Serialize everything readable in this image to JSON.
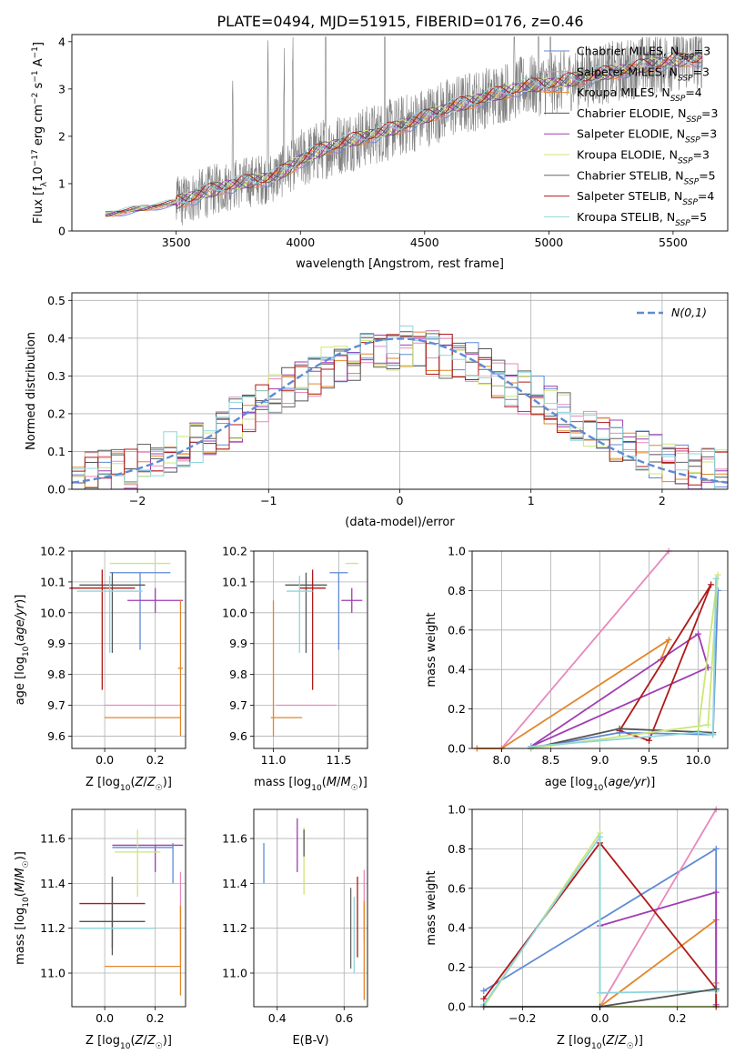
{
  "figure_title": "PLATE=0494, MJD=51915, FIBERID=0176, z=0.46",
  "colors": {
    "Chabrier MILES": "#5f8ad6",
    "Salpeter MILES": "#e889bd",
    "Kroupa MILES": "#e2862c",
    "Chabrier ELODIE": "#555555",
    "Salpeter ELODIE": "#a03cb4",
    "Kroupa ELODIE": "#cde67a",
    "Chabrier STELIB": "#666666",
    "Salpeter STELIB": "#b01919",
    "Kroupa STELIB": "#8fd6dc"
  },
  "chart_data": [
    {
      "id": "spectrum",
      "type": "line",
      "title": "PLATE=0494, MJD=51915, FIBERID=0176, z=0.46",
      "xlabel": "wavelength [Angstrom, rest frame]",
      "ylabel": "Flux [f_λ 10^-17 erg cm^-2 s^-1 A^-1]",
      "xlim": [
        3080,
        5720
      ],
      "ylim": [
        0,
        4.15
      ],
      "xticks": [
        3500,
        4000,
        4500,
        5000,
        5500
      ],
      "yticks": [
        0,
        1,
        2,
        3,
        4
      ],
      "grid": false,
      "legend_position": "top-right",
      "observed_spectrum": {
        "color": "#808080",
        "x_range": [
          3215,
          5620
        ]
      },
      "series": [
        {
          "name": "Chabrier MILES, N_SSP=3",
          "legend_label": "Chabrier MILES, N",
          "nssp": "=3"
        },
        {
          "name": "Salpeter MILES, N_SSP=3",
          "legend_label": "Salpeter MILES, N",
          "nssp": "=3"
        },
        {
          "name": "Kroupa MILES, N_SSP=4",
          "legend_label": "Kroupa MILES, N",
          "nssp": "=4"
        },
        {
          "name": "Chabrier ELODIE, N_SSP=3",
          "legend_label": "Chabrier ELODIE, N",
          "nssp": "=3"
        },
        {
          "name": "Salpeter ELODIE, N_SSP=3",
          "legend_label": "Salpeter ELODIE, N",
          "nssp": "=3"
        },
        {
          "name": "Kroupa ELODIE, N_SSP=3",
          "legend_label": "Kroupa ELODIE, N",
          "nssp": "=3"
        },
        {
          "name": "Chabrier STELIB, N_SSP=5",
          "legend_label": "Chabrier STELIB, N",
          "nssp": "=5"
        },
        {
          "name": "Salpeter STELIB, N_SSP=4",
          "legend_label": "Salpeter STELIB, N",
          "nssp": "=4"
        },
        {
          "name": "Kroupa STELIB, N_SSP=5",
          "legend_label": "Kroupa STELIB, N",
          "nssp": "=5"
        }
      ],
      "continuum": {
        "x": [
          3215,
          3300,
          3450,
          3500,
          3600,
          3700,
          3800,
          3900,
          4000,
          4100,
          4200,
          4300,
          4400,
          4500,
          4600,
          4700,
          4800,
          4900,
          5000,
          5100,
          5200,
          5300,
          5400,
          5500,
          5620
        ],
        "y": [
          0.35,
          0.42,
          0.55,
          0.6,
          0.78,
          0.95,
          1.05,
          1.15,
          1.5,
          1.75,
          1.9,
          2.05,
          2.2,
          2.4,
          2.6,
          2.75,
          2.9,
          3.05,
          3.1,
          3.2,
          3.3,
          3.4,
          3.5,
          3.6,
          3.65
        ]
      }
    },
    {
      "id": "residuals",
      "type": "histogram",
      "xlabel": "(data-model)/error",
      "ylabel": "Normed distribution",
      "xlim": [
        -2.5,
        2.5
      ],
      "ylim": [
        0,
        0.52
      ],
      "xticks": [
        -2,
        -1,
        0,
        1,
        2
      ],
      "yticks": [
        0.0,
        0.1,
        0.2,
        0.3,
        0.4,
        0.5
      ],
      "grid": true,
      "legend_position": "top-right",
      "legend_label": "N(0,1)",
      "bin_width": 0.1,
      "reference": {
        "name": "N(0,1)",
        "mean": 0,
        "sigma": 1,
        "style": "dashed",
        "color": "#5f8ad6"
      },
      "series_envelope": {
        "x": [
          -2.5,
          -2.0,
          -1.5,
          -1.0,
          -0.5,
          0.0,
          0.5,
          1.0,
          1.5,
          2.0,
          2.5
        ],
        "y": [
          0.03,
          0.06,
          0.13,
          0.24,
          0.33,
          0.38,
          0.34,
          0.25,
          0.15,
          0.08,
          0.04
        ]
      }
    },
    {
      "id": "age-vs-Z",
      "type": "errorbar",
      "xlabel": "Z [log10(Z/Z☉)]",
      "ylabel": "age [log10(age/yr)]",
      "xlim": [
        -0.13,
        0.32
      ],
      "ylim": [
        9.56,
        10.2
      ],
      "xticks": [
        0.0,
        0.2
      ],
      "yticks": [
        9.6,
        9.7,
        9.8,
        9.9,
        10.0,
        10.1,
        10.2
      ],
      "grid": true,
      "points": [
        {
          "series": "Chabrier MILES",
          "x": 0.14,
          "xerr": [
            0.12,
            0.12
          ],
          "y": 10.13,
          "yerr": [
            0.25,
            0.0
          ]
        },
        {
          "series": "Kroupa ELODIE",
          "x": 0.14,
          "xerr": [
            0.12,
            0.12
          ],
          "y": 10.16,
          "yerr": [
            0.0,
            0.0
          ]
        },
        {
          "series": "Chabrier ELODIE",
          "x": 0.03,
          "xerr": [
            0.13,
            0.13
          ],
          "y": 10.09,
          "yerr": [
            0.22,
            0.04
          ]
        },
        {
          "series": "Salpeter STELIB",
          "x": -0.01,
          "xerr": [
            0.13,
            0.13
          ],
          "y": 10.08,
          "yerr": [
            0.33,
            0.06
          ]
        },
        {
          "series": "Kroupa STELIB",
          "x": 0.02,
          "xerr": [
            0.13,
            0.13
          ],
          "y": 10.07,
          "yerr": [
            0.2,
            0.05
          ]
        },
        {
          "series": "Salpeter ELODIE",
          "x": 0.2,
          "xerr": [
            0.11,
            0.11
          ],
          "y": 10.04,
          "yerr": [
            0.04,
            0.04
          ]
        },
        {
          "series": "Kroupa MILES",
          "x": 0.3,
          "xerr": [
            0.01,
            0.01
          ],
          "y": 9.82,
          "yerr": [
            0.22,
            0.22
          ]
        },
        {
          "series": "Salpeter MILES",
          "x": 0.15,
          "xerr": [
            0.15,
            0.15
          ],
          "y": 9.7,
          "yerr": [
            0.0,
            0.0
          ]
        },
        {
          "series": "Kroupa MILES",
          "x": 0.15,
          "xerr": [
            0.15,
            0.15
          ],
          "y": 9.66,
          "yerr": [
            0.0,
            0.0
          ]
        }
      ]
    },
    {
      "id": "age-vs-mass",
      "type": "errorbar",
      "xlabel": "mass [log10(M/M☉)]",
      "ylabel": "",
      "xlim": [
        10.85,
        11.72
      ],
      "ylim": [
        9.56,
        10.2
      ],
      "xticks": [
        11.0,
        11.5
      ],
      "yticks": [
        9.6,
        9.7,
        9.8,
        9.9,
        10.0,
        10.1,
        10.2
      ],
      "grid": true,
      "points": [
        {
          "series": "Chabrier MILES",
          "x": 11.5,
          "xerr": [
            0.07,
            0.07
          ],
          "y": 10.13,
          "yerr": [
            0.25,
            0.0
          ]
        },
        {
          "series": "Kroupa ELODIE",
          "x": 11.6,
          "xerr": [
            0.05,
            0.05
          ],
          "y": 10.16,
          "yerr": [
            0.0,
            0.0
          ]
        },
        {
          "series": "Chabrier ELODIE",
          "x": 11.25,
          "xerr": [
            0.16,
            0.16
          ],
          "y": 10.09,
          "yerr": [
            0.22,
            0.04
          ]
        },
        {
          "series": "Salpeter STELIB",
          "x": 11.3,
          "xerr": [
            0.1,
            0.1
          ],
          "y": 10.08,
          "yerr": [
            0.33,
            0.06
          ]
        },
        {
          "series": "Kroupa STELIB",
          "x": 11.2,
          "xerr": [
            0.1,
            0.1
          ],
          "y": 10.07,
          "yerr": [
            0.2,
            0.05
          ]
        },
        {
          "series": "Salpeter ELODIE",
          "x": 11.6,
          "xerr": [
            0.08,
            0.08
          ],
          "y": 10.04,
          "yerr": [
            0.04,
            0.04
          ]
        },
        {
          "series": "Kroupa MILES",
          "x": 11.0,
          "xerr": [
            0.0,
            0.0
          ],
          "y": 9.82,
          "yerr": [
            0.22,
            0.22
          ]
        },
        {
          "series": "Salpeter MILES",
          "x": 11.25,
          "xerr": [
            0.23,
            0.23
          ],
          "y": 9.7,
          "yerr": [
            0.0,
            0.0
          ]
        },
        {
          "series": "Kroupa MILES",
          "x": 11.1,
          "xerr": [
            0.12,
            0.12
          ],
          "y": 9.66,
          "yerr": [
            0.0,
            0.0
          ]
        }
      ]
    },
    {
      "id": "weight-vs-age",
      "type": "line",
      "xlabel": "age [log10(age/yr)]",
      "ylabel": "mass weight",
      "xlim": [
        7.7,
        10.3
      ],
      "ylim": [
        0.0,
        1.0
      ],
      "xticks": [
        8.0,
        8.5,
        9.0,
        9.5,
        10.0
      ],
      "yticks": [
        0.0,
        0.2,
        0.4,
        0.6,
        0.8,
        1.0
      ],
      "grid": true,
      "series": [
        {
          "name": "Salpeter MILES",
          "x": [
            7.75,
            8.0,
            9.7
          ],
          "y": [
            0.0,
            0.0,
            1.0
          ]
        },
        {
          "name": "Kroupa MILES",
          "x": [
            7.75,
            8.0,
            9.7,
            9.62
          ],
          "y": [
            0.0,
            0.0,
            0.55,
            0.45
          ]
        },
        {
          "name": "Salpeter ELODIE",
          "x": [
            8.3,
            10.0,
            10.1,
            8.3
          ],
          "y": [
            0.01,
            0.58,
            0.41,
            0.01
          ]
        },
        {
          "name": "Salpeter STELIB",
          "x": [
            9.2,
            9.5,
            10.13,
            9.2
          ],
          "y": [
            0.09,
            0.04,
            0.83,
            0.09
          ]
        },
        {
          "name": "Chabrier MILES",
          "x": [
            8.3,
            9.2,
            10.15,
            10.2
          ],
          "y": [
            0.0,
            0.08,
            0.07,
            0.8
          ]
        },
        {
          "name": "Chabrier ELODIE",
          "x": [
            8.3,
            9.2,
            10.15
          ],
          "y": [
            0.0,
            0.1,
            0.08
          ]
        },
        {
          "name": "Kroupa ELODIE",
          "x": [
            8.3,
            10.1,
            10.2,
            10.0
          ],
          "y": [
            0.0,
            0.12,
            0.88,
            0.09
          ]
        },
        {
          "name": "Kroupa STELIB",
          "x": [
            8.3,
            10.0,
            10.15,
            10.18
          ],
          "y": [
            0.01,
            0.08,
            0.07,
            0.86
          ]
        }
      ]
    },
    {
      "id": "mass-vs-Z",
      "type": "errorbar",
      "xlabel": "Z [log10(Z/Z☉)]",
      "ylabel": "mass [log10(M/M☉)]",
      "xlim": [
        -0.13,
        0.32
      ],
      "ylim": [
        10.85,
        11.73
      ],
      "xticks": [
        0.0,
        0.2
      ],
      "yticks": [
        11.0,
        11.2,
        11.4,
        11.6
      ],
      "grid": true,
      "points": [
        {
          "series": "Salpeter ELODIE",
          "x": 0.2,
          "xerr": [
            0.17,
            0.11
          ],
          "y": 11.57,
          "yerr": [
            0.12,
            0.0
          ]
        },
        {
          "series": "Chabrier MILES",
          "x": 0.15,
          "xerr": [
            0.12,
            0.12
          ],
          "y": 11.56,
          "yerr": [
            0.0,
            0.0
          ]
        },
        {
          "series": "Kroupa ELODIE",
          "x": 0.13,
          "xerr": [
            0.09,
            0.09
          ],
          "y": 11.54,
          "yerr": [
            0.2,
            0.1
          ]
        },
        {
          "series": "Chabrier MILES",
          "x": 0.27,
          "xerr": [
            0.0,
            0.0
          ],
          "y": 11.5,
          "yerr": [
            0.1,
            0.08
          ]
        },
        {
          "series": "Salpeter STELIB",
          "x": 0.03,
          "xerr": [
            0.13,
            0.13
          ],
          "y": 11.31,
          "yerr": [
            0.2,
            0.12
          ]
        },
        {
          "series": "Chabrier ELODIE",
          "x": 0.03,
          "xerr": [
            0.13,
            0.13
          ],
          "y": 11.23,
          "yerr": [
            0.15,
            0.2
          ]
        },
        {
          "series": "Kroupa STELIB",
          "x": 0.05,
          "xerr": [
            0.15,
            0.15
          ],
          "y": 11.2,
          "yerr": [
            0.0,
            0.0
          ]
        },
        {
          "series": "Salpeter MILES",
          "x": 0.3,
          "xerr": [
            0.0,
            0.0
          ],
          "y": 11.25,
          "yerr": [
            0.2,
            0.2
          ]
        },
        {
          "series": "Kroupa MILES",
          "x": 0.15,
          "xerr": [
            0.15,
            0.15
          ],
          "y": 11.03,
          "yerr": [
            0.0,
            0.0
          ]
        },
        {
          "series": "Kroupa MILES",
          "x": 0.3,
          "xerr": [
            0.0,
            0.0
          ],
          "y": 11.1,
          "yerr": [
            0.2,
            0.2
          ]
        }
      ]
    },
    {
      "id": "mass-vs-ebv",
      "type": "errorbar",
      "xlabel": "E(B-V)",
      "ylabel": "",
      "xlim": [
        0.33,
        0.67
      ],
      "ylim": [
        10.85,
        11.73
      ],
      "xticks": [
        0.4,
        0.6
      ],
      "yticks": [
        11.0,
        11.2,
        11.4,
        11.6
      ],
      "grid": true,
      "points": [
        {
          "series": "Chabrier MILES",
          "x": 0.36,
          "xerr": [
            0.0,
            0.0
          ],
          "y": 11.5,
          "yerr": [
            0.1,
            0.08
          ]
        },
        {
          "series": "Salpeter ELODIE",
          "x": 0.46,
          "xerr": [
            0.0,
            0.0
          ],
          "y": 11.57,
          "yerr": [
            0.12,
            0.12
          ]
        },
        {
          "series": "Kroupa ELODIE",
          "x": 0.48,
          "xerr": [
            0.0,
            0.0
          ],
          "y": 11.5,
          "yerr": [
            0.15,
            0.15
          ]
        },
        {
          "series": "Chabrier ELODIE",
          "x": 0.48,
          "xerr": [
            0.0,
            0.0
          ],
          "y": 11.58,
          "yerr": [
            0.06,
            0.06
          ]
        },
        {
          "series": "Chabrier STELIB",
          "x": 0.62,
          "xerr": [
            0.0,
            0.0
          ],
          "y": 11.2,
          "yerr": [
            0.18,
            0.18
          ]
        },
        {
          "series": "Kroupa STELIB",
          "x": 0.63,
          "xerr": [
            0.0,
            0.0
          ],
          "y": 11.17,
          "yerr": [
            0.17,
            0.17
          ]
        },
        {
          "series": "Salpeter STELIB",
          "x": 0.64,
          "xerr": [
            0.0,
            0.0
          ],
          "y": 11.25,
          "yerr": [
            0.18,
            0.18
          ]
        },
        {
          "series": "Salpeter MILES",
          "x": 0.66,
          "xerr": [
            0.0,
            0.0
          ],
          "y": 11.3,
          "yerr": [
            0.16,
            0.16
          ]
        },
        {
          "series": "Kroupa MILES",
          "x": 0.66,
          "xerr": [
            0.0,
            0.0
          ],
          "y": 11.1,
          "yerr": [
            0.22,
            0.22
          ]
        }
      ]
    },
    {
      "id": "weight-vs-Z",
      "type": "line",
      "xlabel": "Z [log10(Z/Z☉)]",
      "ylabel": "mass weight",
      "xlim": [
        -0.33,
        0.33
      ],
      "ylim": [
        0.0,
        1.0
      ],
      "xticks": [
        -0.2,
        0.0,
        0.2
      ],
      "yticks": [
        0.0,
        0.2,
        0.4,
        0.6,
        0.8,
        1.0
      ],
      "grid": true,
      "series": [
        {
          "name": "Chabrier MILES",
          "x": [
            -0.3,
            0.3,
            0.3
          ],
          "y": [
            0.08,
            0.8,
            0.08
          ]
        },
        {
          "name": "Salpeter MILES",
          "x": [
            0.0,
            0.3
          ],
          "y": [
            0.0,
            1.0
          ]
        },
        {
          "name": "Kroupa MILES",
          "x": [
            0.0,
            0.3,
            0.3
          ],
          "y": [
            0.0,
            0.44,
            0.12
          ]
        },
        {
          "name": "Salpeter ELODIE",
          "x": [
            0.0,
            0.3,
            0.3
          ],
          "y": [
            0.41,
            0.58,
            0.01
          ]
        },
        {
          "name": "Kroupa ELODIE",
          "x": [
            -0.3,
            0.0,
            0.0,
            0.3
          ],
          "y": [
            0.0,
            0.88,
            0.0,
            0.0
          ]
        },
        {
          "name": "Salpeter STELIB",
          "x": [
            -0.3,
            0.0,
            0.3,
            0.3
          ],
          "y": [
            0.04,
            0.83,
            0.09,
            0.0
          ]
        },
        {
          "name": "Kroupa STELIB",
          "x": [
            -0.3,
            0.0,
            0.0,
            0.3
          ],
          "y": [
            0.01,
            0.86,
            0.07,
            0.08
          ]
        },
        {
          "name": "Chabrier ELODIE",
          "x": [
            -0.3,
            0.0,
            0.3
          ],
          "y": [
            0.0,
            0.0,
            0.09
          ]
        }
      ]
    }
  ]
}
